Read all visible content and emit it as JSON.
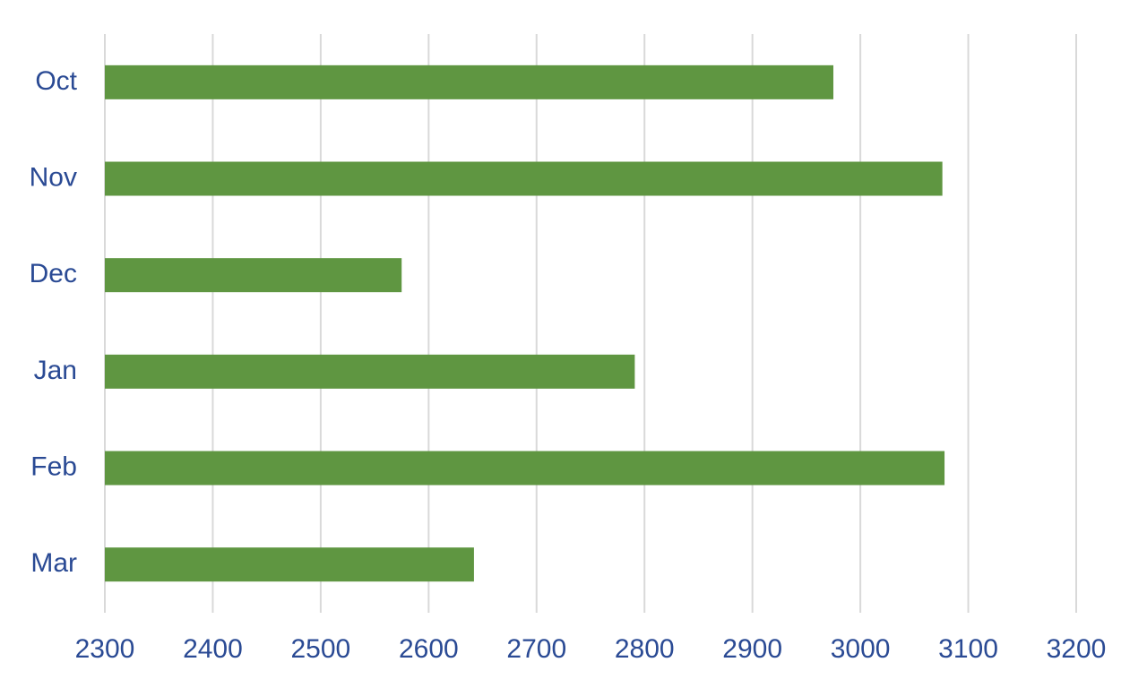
{
  "chart_data": {
    "type": "bar",
    "orientation": "horizontal",
    "categories": [
      "Oct",
      "Nov",
      "Dec",
      "Jan",
      "Feb",
      "Mar"
    ],
    "values": [
      2975,
      3076,
      2575,
      2791,
      3078,
      2642
    ],
    "color": "#5f9641",
    "xlim": [
      2300,
      3200
    ],
    "xticks": [
      2300,
      2400,
      2500,
      2600,
      2700,
      2800,
      2900,
      3000,
      3100,
      3200
    ],
    "grid": true
  }
}
